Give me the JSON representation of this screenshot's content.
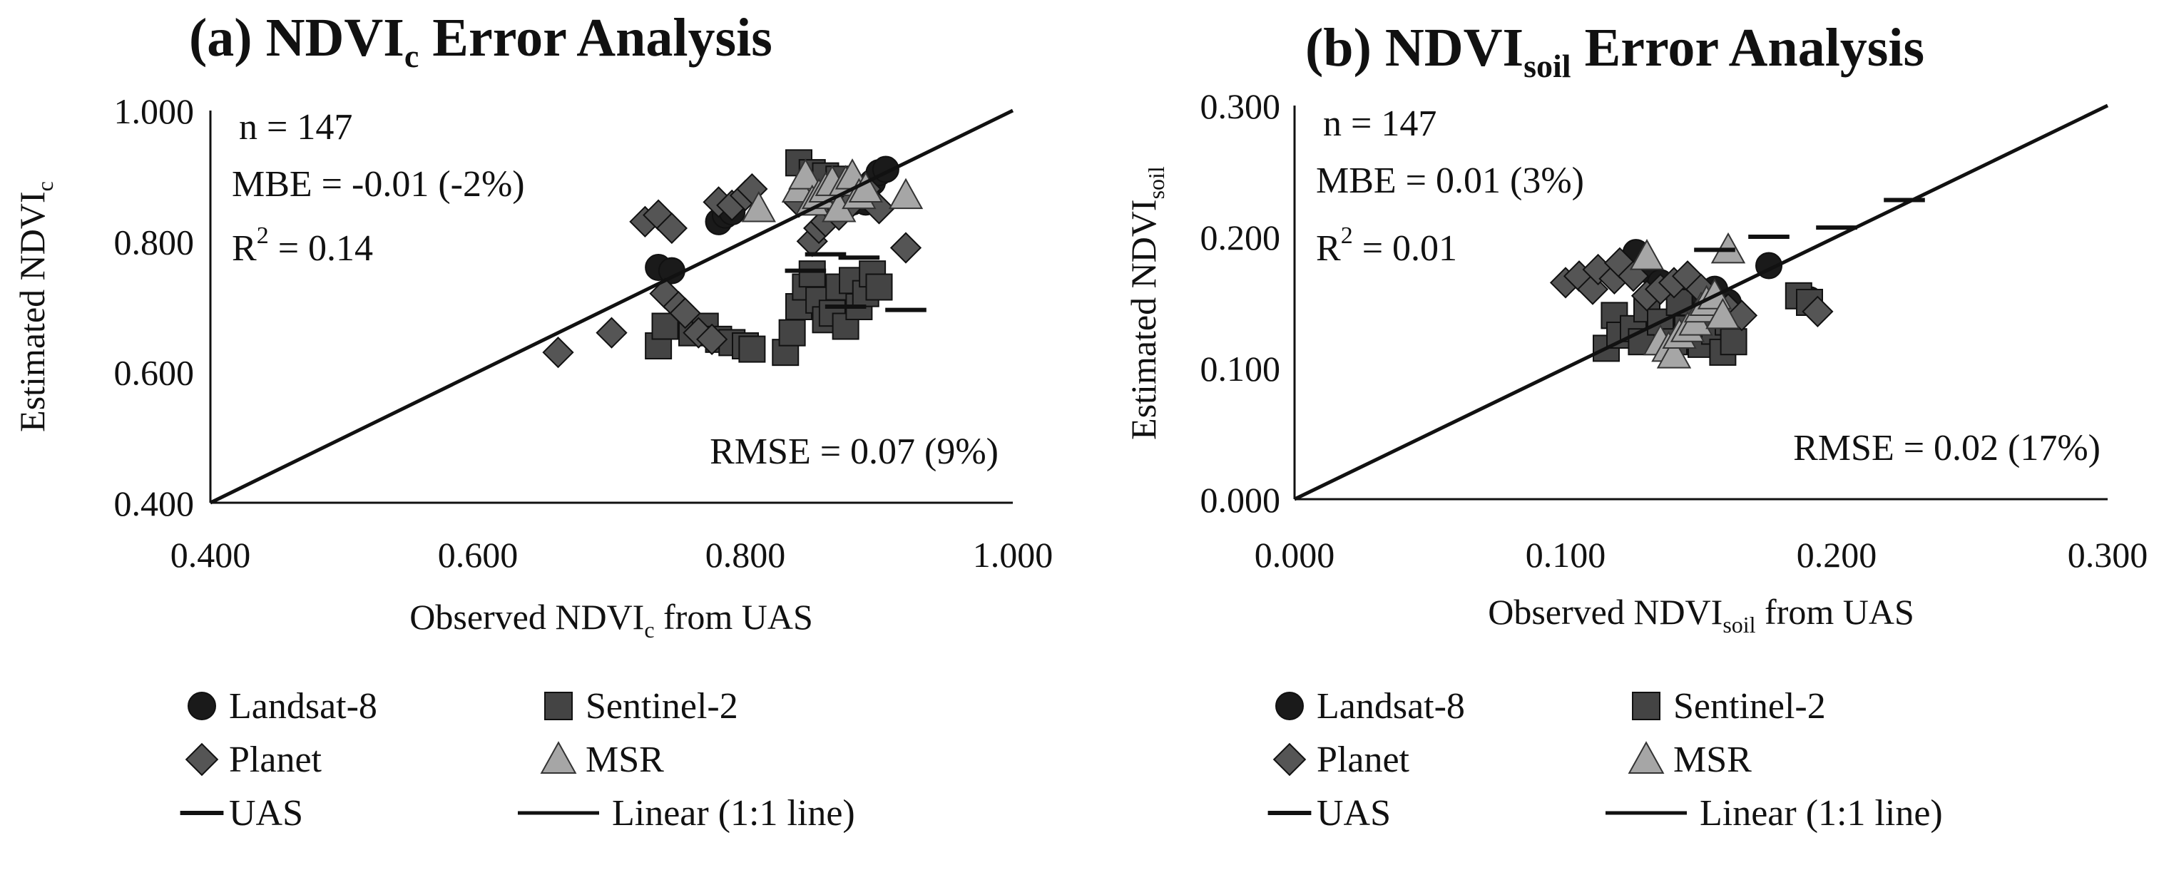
{
  "chart_data": [
    {
      "id": "a",
      "type": "scatter",
      "title": {
        "prefix": "(a) NDVI",
        "sub": "c",
        "suffix": " Error Analysis"
      },
      "xlabel": {
        "prefix": "Observed NDVI",
        "sub": "c",
        "suffix": " from UAS"
      },
      "ylabel": {
        "prefix": "Estimated NDVI",
        "sub": "c",
        "suffix": ""
      },
      "xlim": [
        0.4,
        1.0
      ],
      "ylim": [
        0.4,
        1.0
      ],
      "xticks": [
        "0.400",
        "0.600",
        "0.800",
        "1.000"
      ],
      "yticks": [
        "0.400",
        "0.600",
        "0.800",
        "1.000"
      ],
      "stats": {
        "n": "n = 147",
        "mbe": "MBE = -0.01 (-2%)",
        "r2_prefix": "R",
        "r2_sup": "2",
        "r2_suffix": " = 0.14",
        "rmse": "RMSE = 0.07 (9%)"
      },
      "series": [
        {
          "name": "Landsat-8",
          "marker": "circle",
          "color": "#1a1a1a",
          "points": [
            [
              0.735,
              0.76
            ],
            [
              0.745,
              0.755
            ],
            [
              0.78,
              0.83
            ],
            [
              0.785,
              0.84
            ],
            [
              0.79,
              0.845
            ],
            [
              0.86,
              0.87
            ],
            [
              0.865,
              0.89
            ],
            [
              0.87,
              0.88
            ],
            [
              0.88,
              0.86
            ],
            [
              0.885,
              0.875
            ],
            [
              0.89,
              0.86
            ],
            [
              0.895,
              0.89
            ],
            [
              0.9,
              0.905
            ],
            [
              0.905,
              0.91
            ]
          ]
        },
        {
          "name": "Sentinel-2",
          "marker": "square",
          "color": "#444444",
          "points": [
            [
              0.735,
              0.64
            ],
            [
              0.74,
              0.67
            ],
            [
              0.76,
              0.66
            ],
            [
              0.77,
              0.67
            ],
            [
              0.78,
              0.65
            ],
            [
              0.79,
              0.645
            ],
            [
              0.8,
              0.64
            ],
            [
              0.805,
              0.635
            ],
            [
              0.83,
              0.63
            ],
            [
              0.835,
              0.66
            ],
            [
              0.84,
              0.7
            ],
            [
              0.845,
              0.73
            ],
            [
              0.85,
              0.75
            ],
            [
              0.855,
              0.71
            ],
            [
              0.86,
              0.68
            ],
            [
              0.865,
              0.69
            ],
            [
              0.87,
              0.73
            ],
            [
              0.875,
              0.67
            ],
            [
              0.88,
              0.74
            ],
            [
              0.885,
              0.7
            ],
            [
              0.89,
              0.72
            ],
            [
              0.895,
              0.75
            ],
            [
              0.9,
              0.73
            ],
            [
              0.84,
              0.92
            ],
            [
              0.85,
              0.905
            ],
            [
              0.86,
              0.9
            ],
            [
              0.87,
              0.895
            ]
          ]
        },
        {
          "name": "Planet",
          "marker": "diamond",
          "color": "#555555",
          "points": [
            [
              0.66,
              0.63
            ],
            [
              0.7,
              0.66
            ],
            [
              0.725,
              0.83
            ],
            [
              0.735,
              0.84
            ],
            [
              0.745,
              0.82
            ],
            [
              0.74,
              0.72
            ],
            [
              0.75,
              0.7
            ],
            [
              0.755,
              0.69
            ],
            [
              0.765,
              0.66
            ],
            [
              0.775,
              0.65
            ],
            [
              0.78,
              0.86
            ],
            [
              0.79,
              0.855
            ],
            [
              0.8,
              0.87
            ],
            [
              0.805,
              0.88
            ],
            [
              0.84,
              0.86
            ],
            [
              0.85,
              0.8
            ],
            [
              0.855,
              0.82
            ],
            [
              0.86,
              0.83
            ],
            [
              0.87,
              0.84
            ],
            [
              0.88,
              0.86
            ],
            [
              0.89,
              0.88
            ],
            [
              0.9,
              0.85
            ],
            [
              0.92,
              0.79
            ]
          ]
        },
        {
          "name": "MSR",
          "marker": "triangle",
          "color": "#a6a6a6",
          "points": [
            [
              0.81,
              0.85
            ],
            [
              0.84,
              0.88
            ],
            [
              0.845,
              0.9
            ],
            [
              0.85,
              0.86
            ],
            [
              0.855,
              0.87
            ],
            [
              0.86,
              0.88
            ],
            [
              0.865,
              0.89
            ],
            [
              0.87,
              0.85
            ],
            [
              0.875,
              0.89
            ],
            [
              0.88,
              0.9
            ],
            [
              0.885,
              0.87
            ],
            [
              0.89,
              0.88
            ],
            [
              0.92,
              0.87
            ]
          ]
        },
        {
          "name": "UAS",
          "marker": "dash",
          "color": "#111111",
          "points": [
            [
              0.845,
              0.755
            ],
            [
              0.86,
              0.78
            ],
            [
              0.875,
              0.7
            ],
            [
              0.885,
              0.775
            ],
            [
              0.92,
              0.695
            ]
          ]
        }
      ]
    },
    {
      "id": "b",
      "type": "scatter",
      "title": {
        "prefix": "(b) NDVI",
        "sub": "soil",
        "suffix": " Error Analysis"
      },
      "xlabel": {
        "prefix": "Observed NDVI",
        "sub": "soil",
        "suffix": " from UAS"
      },
      "ylabel": {
        "prefix": "Estimated NDVI",
        "sub": "soil",
        "suffix": ""
      },
      "xlim": [
        0.0,
        0.3
      ],
      "ylim": [
        0.0,
        0.3
      ],
      "xticks": [
        "0.000",
        "0.100",
        "0.200",
        "0.300"
      ],
      "yticks": [
        "0.000",
        "0.100",
        "0.200",
        "0.300"
      ],
      "stats": {
        "n": "n = 147",
        "mbe": "MBE = 0.01 (3%)",
        "r2_prefix": "R",
        "r2_sup": "2",
        "r2_suffix": " = 0.01",
        "rmse": "RMSE = 0.02 (17%)"
      },
      "series": [
        {
          "name": "Landsat-8",
          "marker": "circle",
          "color": "#1a1a1a",
          "points": [
            [
              0.126,
              0.188
            ],
            [
              0.13,
              0.175
            ],
            [
              0.135,
              0.165
            ],
            [
              0.14,
              0.16
            ],
            [
              0.145,
              0.158
            ],
            [
              0.15,
              0.155
            ],
            [
              0.155,
              0.16
            ],
            [
              0.16,
              0.15
            ],
            [
              0.175,
              0.178
            ],
            [
              0.19,
              0.152
            ]
          ]
        },
        {
          "name": "Sentinel-2",
          "marker": "square",
          "color": "#444444",
          "points": [
            [
              0.115,
              0.115
            ],
            [
              0.118,
              0.14
            ],
            [
              0.12,
              0.125
            ],
            [
              0.125,
              0.13
            ],
            [
              0.128,
              0.12
            ],
            [
              0.13,
              0.145
            ],
            [
              0.135,
              0.135
            ],
            [
              0.14,
              0.12
            ],
            [
              0.142,
              0.15
            ],
            [
              0.145,
              0.13
            ],
            [
              0.148,
              0.125
            ],
            [
              0.15,
              0.118
            ],
            [
              0.152,
              0.14
            ],
            [
              0.155,
              0.128
            ],
            [
              0.158,
              0.112
            ],
            [
              0.16,
              0.135
            ],
            [
              0.162,
              0.12
            ],
            [
              0.186,
              0.155
            ],
            [
              0.19,
              0.15
            ]
          ]
        },
        {
          "name": "Planet",
          "marker": "diamond",
          "color": "#555555",
          "points": [
            [
              0.1,
              0.165
            ],
            [
              0.105,
              0.17
            ],
            [
              0.11,
              0.16
            ],
            [
              0.112,
              0.175
            ],
            [
              0.118,
              0.168
            ],
            [
              0.12,
              0.18
            ],
            [
              0.125,
              0.17
            ],
            [
              0.13,
              0.155
            ],
            [
              0.135,
              0.16
            ],
            [
              0.14,
              0.165
            ],
            [
              0.145,
              0.17
            ],
            [
              0.15,
              0.16
            ],
            [
              0.155,
              0.15
            ],
            [
              0.16,
              0.145
            ],
            [
              0.165,
              0.14
            ],
            [
              0.193,
              0.143
            ]
          ]
        },
        {
          "name": "MSR",
          "marker": "triangle",
          "color": "#a6a6a6",
          "points": [
            [
              0.13,
              0.185
            ],
            [
              0.135,
              0.12
            ],
            [
              0.138,
              0.115
            ],
            [
              0.14,
              0.11
            ],
            [
              0.142,
              0.125
            ],
            [
              0.145,
              0.13
            ],
            [
              0.148,
              0.135
            ],
            [
              0.15,
              0.145
            ],
            [
              0.152,
              0.15
            ],
            [
              0.155,
              0.155
            ],
            [
              0.158,
              0.14
            ],
            [
              0.16,
              0.19
            ]
          ]
        },
        {
          "name": "UAS",
          "marker": "dash",
          "color": "#111111",
          "points": [
            [
              0.155,
              0.19
            ],
            [
              0.175,
              0.2
            ],
            [
              0.2,
              0.207
            ],
            [
              0.225,
              0.228
            ]
          ]
        }
      ]
    }
  ],
  "legend": [
    {
      "label": "Landsat-8",
      "marker": "circle"
    },
    {
      "label": "Sentinel-2",
      "marker": "square"
    },
    {
      "label": "Planet",
      "marker": "diamond"
    },
    {
      "label": "MSR",
      "marker": "triangle"
    },
    {
      "label": "UAS",
      "marker": "dash"
    },
    {
      "label": "Linear (1:1 line)",
      "marker": "line"
    }
  ]
}
